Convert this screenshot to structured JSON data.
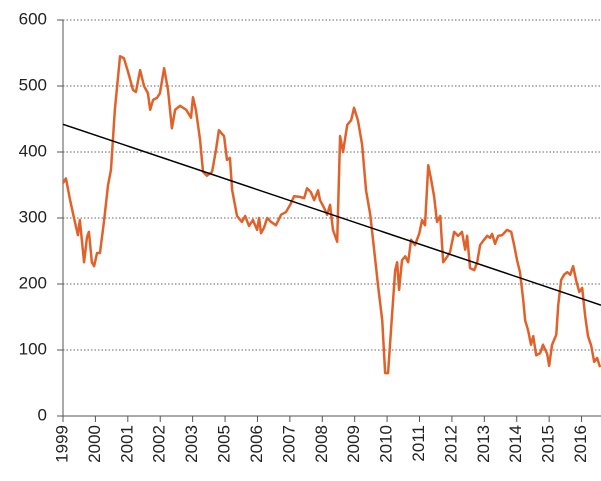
{
  "chart_data": {
    "type": "line",
    "xlim": [
      0,
      16.6
    ],
    "ylim": [
      0,
      600
    ],
    "yticks": [
      0,
      100,
      200,
      300,
      400,
      500,
      600
    ],
    "grid": true,
    "xticks": [
      {
        "value": 0,
        "label": "1999"
      },
      {
        "value": 1,
        "label": "2000"
      },
      {
        "value": 2,
        "label": "2001"
      },
      {
        "value": 3,
        "label": "2002"
      },
      {
        "value": 4,
        "label": "2003"
      },
      {
        "value": 5,
        "label": "2005"
      },
      {
        "value": 6,
        "label": "2006"
      },
      {
        "value": 7,
        "label": "2007"
      },
      {
        "value": 8,
        "label": "2008"
      },
      {
        "value": 9,
        "label": "2009"
      },
      {
        "value": 10,
        "label": "2010"
      },
      {
        "value": 11,
        "label": "2011"
      },
      {
        "value": 12,
        "label": "2012"
      },
      {
        "value": 13,
        "label": "2013"
      },
      {
        "value": 14,
        "label": "2014"
      },
      {
        "value": 15,
        "label": "2015"
      },
      {
        "value": 16,
        "label": "2016"
      }
    ],
    "series": [
      {
        "color": "#e0622a",
        "x": [
          0,
          0.09,
          0.22,
          0.34,
          0.46,
          0.52,
          0.65,
          0.74,
          0.8,
          0.89,
          0.96,
          1.05,
          1.14,
          1.27,
          1.39,
          1.48,
          1.6,
          1.76,
          1.88,
          2.01,
          2.16,
          2.25,
          2.38,
          2.5,
          2.62,
          2.69,
          2.78,
          2.9,
          2.99,
          3.12,
          3.24,
          3.36,
          3.46,
          3.61,
          3.8,
          3.95,
          4.01,
          4.1,
          4.23,
          4.32,
          4.44,
          4.6,
          4.72,
          4.81,
          4.97,
          5.06,
          5.15,
          5.22,
          5.37,
          5.52,
          5.62,
          5.74,
          5.86,
          5.99,
          6.05,
          6.11,
          6.2,
          6.3,
          6.42,
          6.57,
          6.73,
          6.88,
          7.01,
          7.13,
          7.31,
          7.44,
          7.53,
          7.65,
          7.75,
          7.87,
          7.93,
          8.06,
          8.15,
          8.24,
          8.33,
          8.46,
          8.55,
          8.64,
          8.77,
          8.89,
          8.98,
          9.1,
          9.23,
          9.35,
          9.48,
          9.6,
          9.72,
          9.85,
          9.94,
          10.03,
          10.12,
          10.25,
          10.31,
          10.37,
          10.46,
          10.56,
          10.65,
          10.74,
          10.86,
          10.99,
          11.08,
          11.17,
          11.27,
          11.36,
          11.45,
          11.54,
          11.64,
          11.73,
          11.82,
          11.94,
          12.07,
          12.19,
          12.31,
          12.41,
          12.47,
          12.56,
          12.69,
          12.78,
          12.87,
          12.99,
          13.09,
          13.18,
          13.24,
          13.33,
          13.43,
          13.55,
          13.7,
          13.83,
          13.92,
          14.01,
          14.1,
          14.2,
          14.26,
          14.35,
          14.44,
          14.51,
          14.6,
          14.72,
          14.81,
          14.94,
          15,
          15.09,
          15.22,
          15.28,
          15.37,
          15.46,
          15.56,
          15.65,
          15.74,
          15.83,
          15.93,
          16.02,
          16.11,
          16.2,
          16.3,
          16.39,
          16.48,
          16.57
        ],
        "values": [
          353,
          360,
          327,
          300,
          274,
          297,
          233,
          271,
          279,
          233,
          227,
          247,
          247,
          297,
          350,
          373,
          464,
          545,
          542,
          521,
          494,
          491,
          524,
          500,
          489,
          464,
          479,
          482,
          489,
          527,
          494,
          436,
          464,
          470,
          464,
          452,
          483,
          464,
          418,
          370,
          364,
          370,
          403,
          433,
          424,
          388,
          391,
          342,
          303,
          294,
          303,
          288,
          297,
          282,
          300,
          277,
          285,
          300,
          294,
          289,
          305,
          309,
          320,
          333,
          332,
          330,
          345,
          339,
          327,
          342,
          327,
          315,
          305,
          320,
          282,
          264,
          424,
          400,
          441,
          448,
          467,
          448,
          411,
          342,
          305,
          252,
          198,
          145,
          65,
          65,
          130,
          221,
          233,
          191,
          236,
          242,
          233,
          267,
          259,
          276,
          297,
          289,
          380,
          358,
          333,
          294,
          303,
          233,
          239,
          248,
          279,
          273,
          279,
          252,
          273,
          224,
          221,
          233,
          259,
          267,
          273,
          270,
          276,
          261,
          273,
          274,
          282,
          279,
          259,
          236,
          218,
          176,
          145,
          130,
          108,
          121,
          92,
          95,
          108,
          94,
          76,
          108,
          123,
          168,
          206,
          214,
          218,
          214,
          227,
          206,
          188,
          194,
          152,
          121,
          106,
          82,
          88,
          74
        ]
      },
      {
        "color": "#000000",
        "x": [
          0,
          16.6
        ],
        "values": [
          442,
          168
        ]
      }
    ]
  }
}
